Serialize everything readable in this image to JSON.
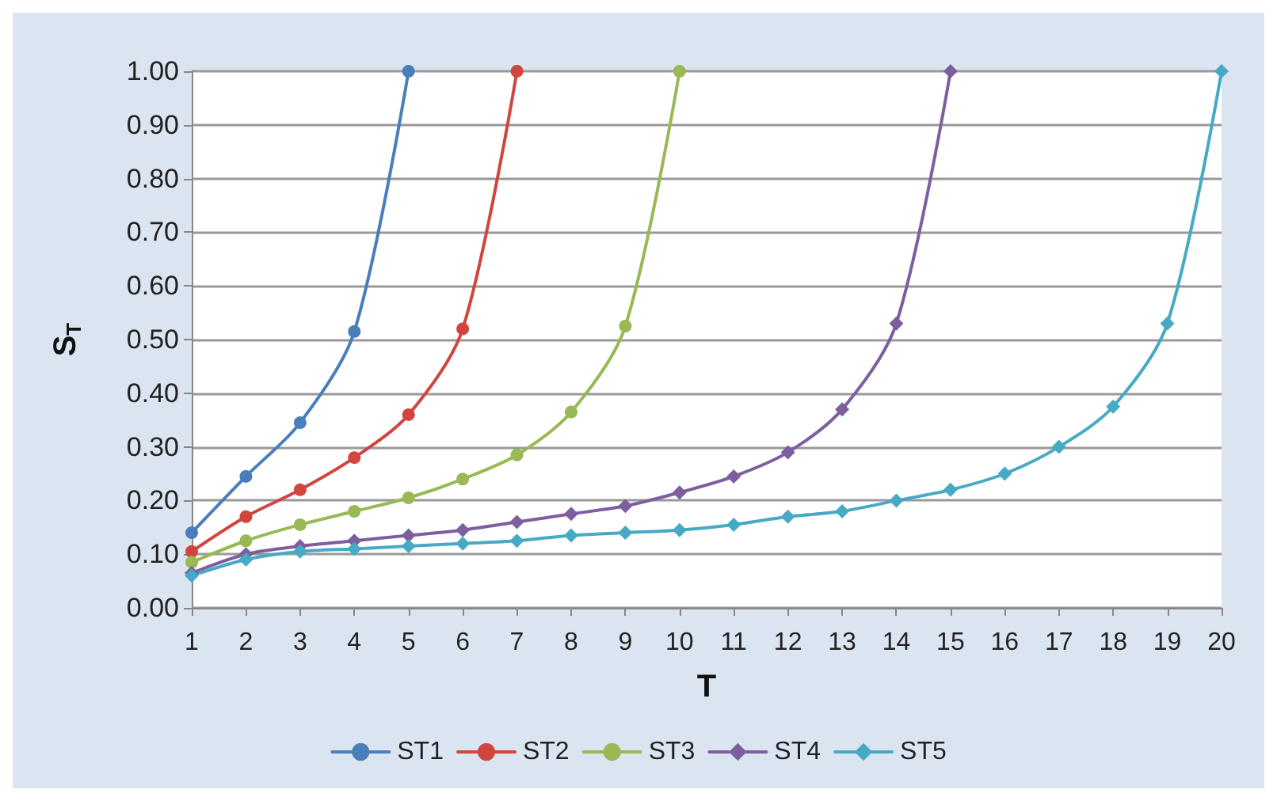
{
  "chart_data": {
    "type": "line",
    "xlabel": "T",
    "ylabel": "S$_{T}$",
    "x": [
      1,
      2,
      3,
      4,
      5,
      6,
      7,
      8,
      9,
      10,
      11,
      12,
      13,
      14,
      15,
      16,
      17,
      18,
      19,
      20
    ],
    "xlim": [
      1,
      20
    ],
    "xticks": [
      1,
      2,
      3,
      4,
      5,
      6,
      7,
      8,
      9,
      10,
      11,
      12,
      13,
      14,
      15,
      16,
      17,
      18,
      19,
      20
    ],
    "series": [
      {
        "name": "ST1",
        "color": "#4a7ebb",
        "marker": "circle",
        "values": [
          0.14,
          0.245,
          0.345,
          0.515,
          1.0,
          null,
          null,
          null,
          null,
          null,
          null,
          null,
          null,
          null,
          null,
          null,
          null,
          null,
          null,
          null
        ]
      },
      {
        "name": "ST2",
        "color": "#d0463f",
        "marker": "circle",
        "values": [
          0.105,
          0.17,
          0.22,
          0.28,
          0.36,
          0.52,
          1.0,
          null,
          null,
          null,
          null,
          null,
          null,
          null,
          null,
          null,
          null,
          null,
          null,
          null
        ]
      },
      {
        "name": "ST3",
        "color": "#98b954",
        "marker": "circle",
        "values": [
          0.085,
          0.125,
          0.155,
          0.18,
          0.205,
          0.24,
          0.285,
          0.365,
          0.525,
          1.0,
          null,
          null,
          null,
          null,
          null,
          null,
          null,
          null,
          null,
          null
        ]
      },
      {
        "name": "ST4",
        "color": "#7d5fa0",
        "marker": "diamond",
        "values": [
          0.065,
          0.1,
          0.115,
          0.125,
          0.135,
          0.145,
          0.16,
          0.175,
          0.19,
          0.215,
          0.245,
          0.29,
          0.37,
          0.53,
          1.0,
          null,
          null,
          null,
          null,
          null
        ]
      },
      {
        "name": "ST5",
        "color": "#46aac4",
        "marker": "diamond",
        "values": [
          0.06,
          0.09,
          0.105,
          0.11,
          0.115,
          0.12,
          0.125,
          0.135,
          0.14,
          0.145,
          0.155,
          0.17,
          0.18,
          0.2,
          0.22,
          0.25,
          0.3,
          0.375,
          0.53,
          1.0
        ]
      }
    ],
    "ylim": [
      0,
      1
    ],
    "yticks": [
      {
        "value": 0,
        "label": "0.00"
      },
      {
        "value": 0.1,
        "label": "0.10"
      },
      {
        "value": 0.2,
        "label": "0.20"
      },
      {
        "value": 0.3,
        "label": "0.30"
      },
      {
        "value": 0.4,
        "label": "0.40"
      },
      {
        "value": 0.5,
        "label": "0.50"
      },
      {
        "value": 0.6,
        "label": "0.60"
      },
      {
        "value": 0.7,
        "label": "0.70"
      },
      {
        "value": 0.8,
        "label": "0.80"
      },
      {
        "value": 0.9,
        "label": "0.90"
      },
      {
        "value": 1.0,
        "label": "1.00"
      }
    ],
    "grid": "y",
    "legend": "bottom",
    "line_style": "solid"
  }
}
